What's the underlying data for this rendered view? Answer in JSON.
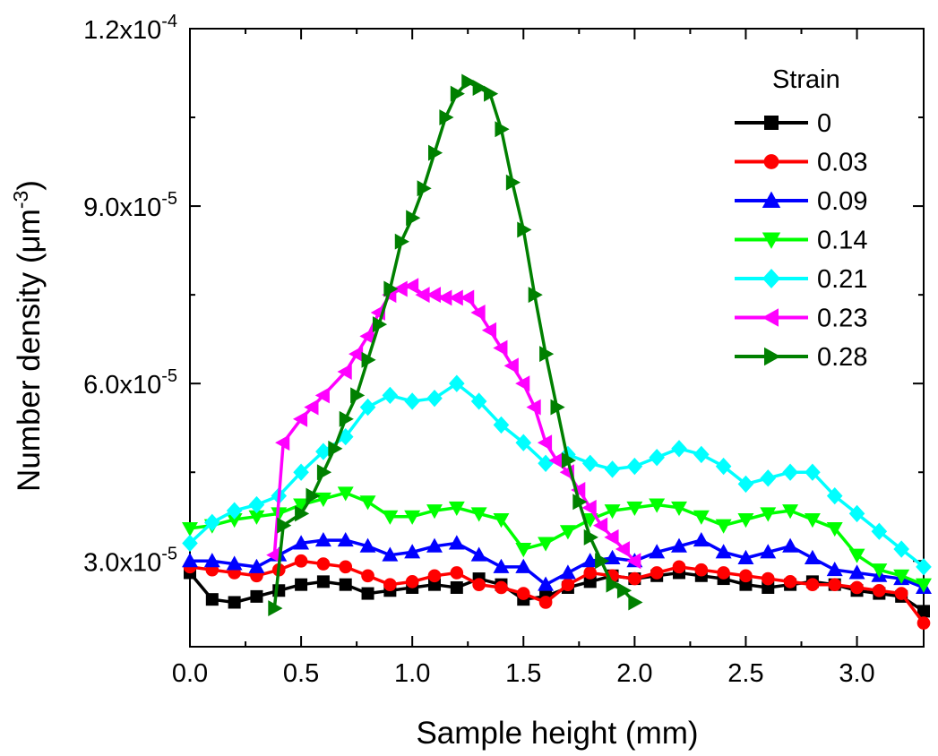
{
  "chart_data": {
    "type": "line",
    "xlabel": "Sample height (mm)",
    "ylabel": "Number density (μm",
    "ylabel_superscript": "-3",
    "ylabel_suffix": ")",
    "xlim": [
      0,
      3.3
    ],
    "ylim": [
      1.55e-05,
      0.00012
    ],
    "x_ticks": [
      {
        "value": 0.0,
        "label": "0.0"
      },
      {
        "value": 0.5,
        "label": "0.5"
      },
      {
        "value": 1.0,
        "label": "1.0"
      },
      {
        "value": 1.5,
        "label": "1.5"
      },
      {
        "value": 2.0,
        "label": "2.0"
      },
      {
        "value": 2.5,
        "label": "2.5"
      },
      {
        "value": 3.0,
        "label": "3.0"
      }
    ],
    "y_ticks": [
      {
        "value": 3e-05,
        "mantissa": "3.0x10",
        "exp": "-5"
      },
      {
        "value": 6e-05,
        "mantissa": "6.0x10",
        "exp": "-5"
      },
      {
        "value": 9e-05,
        "mantissa": "9.0x10",
        "exp": "-5"
      },
      {
        "value": 0.00012,
        "mantissa": "1.2x10",
        "exp": "-4"
      }
    ],
    "legend_title": "Strain",
    "legend_position": "top-right",
    "grid": false,
    "series": [
      {
        "name": "0",
        "color": "#000000",
        "marker": "square",
        "x": [
          0,
          0.1,
          0.2,
          0.3,
          0.4,
          0.5,
          0.6,
          0.7,
          0.8,
          0.9,
          1.0,
          1.1,
          1.2,
          1.3,
          1.4,
          1.5,
          1.6,
          1.7,
          1.8,
          1.9,
          2.0,
          2.1,
          2.2,
          2.3,
          2.4,
          2.5,
          2.6,
          2.7,
          2.8,
          2.9,
          3.0,
          3.1,
          3.2,
          3.3
        ],
        "y": [
          2.8e-05,
          2.35e-05,
          2.3e-05,
          2.4e-05,
          2.5e-05,
          2.6e-05,
          2.65e-05,
          2.6e-05,
          2.45e-05,
          2.5e-05,
          2.55e-05,
          2.6e-05,
          2.55e-05,
          2.7e-05,
          2.6e-05,
          2.35e-05,
          2.4e-05,
          2.55e-05,
          2.65e-05,
          2.75e-05,
          2.7e-05,
          2.75e-05,
          2.8e-05,
          2.75e-05,
          2.7e-05,
          2.6e-05,
          2.55e-05,
          2.6e-05,
          2.65e-05,
          2.6e-05,
          2.5e-05,
          2.45e-05,
          2.4e-05,
          2.15e-05
        ]
      },
      {
        "name": "0.03",
        "color": "#ff0000",
        "marker": "circle",
        "x": [
          0,
          0.1,
          0.2,
          0.3,
          0.4,
          0.5,
          0.6,
          0.7,
          0.8,
          0.9,
          1.0,
          1.1,
          1.2,
          1.3,
          1.4,
          1.5,
          1.6,
          1.7,
          1.8,
          1.9,
          2.0,
          2.1,
          2.2,
          2.3,
          2.4,
          2.5,
          2.6,
          2.7,
          2.8,
          2.9,
          3.0,
          3.1,
          3.2,
          3.3
        ],
        "y": [
          2.9e-05,
          2.85e-05,
          2.8e-05,
          2.75e-05,
          2.85e-05,
          3e-05,
          2.95e-05,
          2.9e-05,
          2.75e-05,
          2.6e-05,
          2.65e-05,
          2.75e-05,
          2.8e-05,
          2.6e-05,
          2.55e-05,
          2.45e-05,
          2.3e-05,
          2.6e-05,
          2.8e-05,
          2.75e-05,
          2.7e-05,
          2.8e-05,
          2.9e-05,
          2.85e-05,
          2.8e-05,
          2.75e-05,
          2.7e-05,
          2.65e-05,
          2.6e-05,
          2.6e-05,
          2.55e-05,
          2.5e-05,
          2.45e-05,
          1.95e-05
        ]
      },
      {
        "name": "0.09",
        "color": "#0000ff",
        "marker": "triangle-up",
        "x": [
          0,
          0.1,
          0.2,
          0.3,
          0.4,
          0.5,
          0.6,
          0.7,
          0.8,
          0.9,
          1.0,
          1.1,
          1.2,
          1.3,
          1.4,
          1.5,
          1.6,
          1.7,
          1.8,
          1.9,
          2.0,
          2.1,
          2.2,
          2.3,
          2.4,
          2.5,
          2.6,
          2.7,
          2.8,
          2.9,
          3.0,
          3.1,
          3.2,
          3.3
        ],
        "y": [
          3e-05,
          3e-05,
          2.95e-05,
          2.9e-05,
          3.1e-05,
          3.3e-05,
          3.35e-05,
          3.35e-05,
          3.25e-05,
          3.1e-05,
          3.15e-05,
          3.25e-05,
          3.3e-05,
          3.1e-05,
          2.9e-05,
          2.9e-05,
          2.6e-05,
          2.8e-05,
          3e-05,
          3.05e-05,
          3e-05,
          3.15e-05,
          3.25e-05,
          3.35e-05,
          3.15e-05,
          3.05e-05,
          3.15e-05,
          3.25e-05,
          3.05e-05,
          2.85e-05,
          2.8e-05,
          2.75e-05,
          2.7e-05,
          2.55e-05
        ]
      },
      {
        "name": "0.14",
        "color": "#00ff00",
        "marker": "triangle-down",
        "x": [
          0,
          0.1,
          0.2,
          0.3,
          0.4,
          0.5,
          0.6,
          0.7,
          0.8,
          0.9,
          1.0,
          1.1,
          1.2,
          1.3,
          1.4,
          1.5,
          1.6,
          1.7,
          1.8,
          1.9,
          2.0,
          2.1,
          2.2,
          2.3,
          2.4,
          2.5,
          2.6,
          2.7,
          2.8,
          2.9,
          3.0,
          3.1,
          3.2,
          3.3
        ],
        "y": [
          3.55e-05,
          3.6e-05,
          3.7e-05,
          3.75e-05,
          3.8e-05,
          3.95e-05,
          4.05e-05,
          4.15e-05,
          4e-05,
          3.75e-05,
          3.75e-05,
          3.85e-05,
          3.9e-05,
          3.8e-05,
          3.7e-05,
          3.2e-05,
          3.3e-05,
          3.5e-05,
          3.7e-05,
          3.85e-05,
          3.9e-05,
          3.95e-05,
          3.9e-05,
          3.75e-05,
          3.6e-05,
          3.7e-05,
          3.8e-05,
          3.85e-05,
          3.7e-05,
          3.55e-05,
          3.1e-05,
          2.85e-05,
          2.75e-05,
          2.6e-05
        ]
      },
      {
        "name": "0.21",
        "color": "#00ffff",
        "marker": "diamond",
        "x": [
          0,
          0.1,
          0.2,
          0.3,
          0.4,
          0.5,
          0.6,
          0.7,
          0.8,
          0.9,
          1.0,
          1.1,
          1.2,
          1.3,
          1.4,
          1.5,
          1.6,
          1.7,
          1.8,
          1.9,
          2.0,
          2.1,
          2.2,
          2.3,
          2.4,
          2.5,
          2.6,
          2.7,
          2.8,
          2.9,
          3.0,
          3.1,
          3.2,
          3.3
        ],
        "y": [
          3.3e-05,
          3.65e-05,
          3.85e-05,
          3.95e-05,
          4.1e-05,
          4.5e-05,
          4.85e-05,
          5.1e-05,
          5.6e-05,
          5.8e-05,
          5.7e-05,
          5.75e-05,
          6e-05,
          5.7e-05,
          5.3e-05,
          5e-05,
          4.65e-05,
          4.8e-05,
          4.65e-05,
          4.55e-05,
          4.6e-05,
          4.75e-05,
          4.9e-05,
          4.8e-05,
          4.6e-05,
          4.3e-05,
          4.4e-05,
          4.5e-05,
          4.5e-05,
          4.1e-05,
          3.8e-05,
          3.5e-05,
          3.2e-05,
          2.9e-05
        ]
      },
      {
        "name": "0.23",
        "color": "#ff00ff",
        "marker": "triangle-left",
        "x": [
          0.38,
          0.42,
          0.5,
          0.55,
          0.6,
          0.7,
          0.75,
          0.8,
          0.85,
          0.9,
          0.95,
          1.0,
          1.05,
          1.1,
          1.15,
          1.2,
          1.25,
          1.3,
          1.35,
          1.4,
          1.45,
          1.5,
          1.55,
          1.6,
          1.65,
          1.7,
          1.75,
          1.8,
          1.85,
          1.9,
          1.95,
          2.0
        ],
        "y": [
          3.1e-05,
          5e-05,
          5.4e-05,
          5.6e-05,
          5.8e-05,
          6.2e-05,
          6.5e-05,
          6.8e-05,
          7.2e-05,
          7.5e-05,
          7.6e-05,
          7.65e-05,
          7.5e-05,
          7.5e-05,
          7.45e-05,
          7.45e-05,
          7.45e-05,
          7.2e-05,
          6.9e-05,
          6.6e-05,
          6.3e-05,
          6e-05,
          5.6e-05,
          5e-05,
          4.7e-05,
          4.5e-05,
          4.2e-05,
          3.9e-05,
          3.6e-05,
          3.4e-05,
          3.2e-05,
          3e-05
        ]
      },
      {
        "name": "0.28",
        "color": "#008000",
        "marker": "triangle-right",
        "x": [
          0.38,
          0.42,
          0.5,
          0.55,
          0.6,
          0.65,
          0.7,
          0.75,
          0.8,
          0.85,
          0.9,
          0.95,
          1.0,
          1.05,
          1.1,
          1.15,
          1.2,
          1.25,
          1.3,
          1.35,
          1.4,
          1.45,
          1.5,
          1.55,
          1.6,
          1.65,
          1.7,
          1.75,
          1.8,
          1.85,
          1.9,
          1.95,
          2.0
        ],
        "y": [
          2.2e-05,
          3.6e-05,
          3.8e-05,
          4.1e-05,
          4.5e-05,
          4.9e-05,
          5.4e-05,
          5.8e-05,
          6.4e-05,
          7e-05,
          7.6e-05,
          8.4e-05,
          8.8e-05,
          9.3e-05,
          9.9e-05,
          0.000105,
          0.000109,
          0.000111,
          0.00011,
          0.000109,
          0.000103,
          9.4e-05,
          8.6e-05,
          7.5e-05,
          6.5e-05,
          5.6e-05,
          4.7e-05,
          4e-05,
          3.4e-05,
          3e-05,
          2.6e-05,
          2.5e-05,
          2.3e-05
        ]
      }
    ]
  }
}
